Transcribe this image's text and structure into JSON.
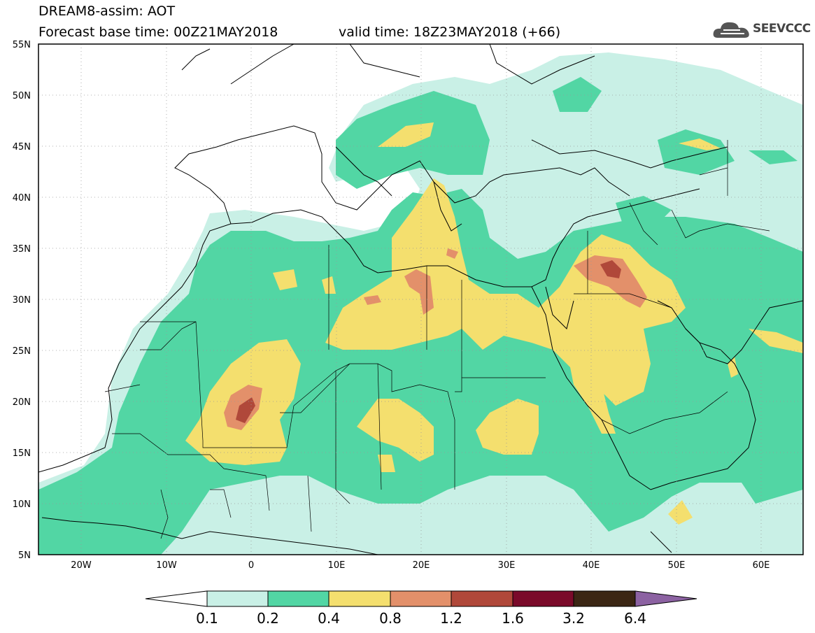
{
  "header": {
    "line1": "DREAM8-assim: AOT",
    "line2": "Forecast base time: 00Z21MAY2018",
    "valid": "valid time: 18Z23MAY2018 (+66)"
  },
  "logo": {
    "text": "SEEVCCC",
    "icon": "cloud-icon"
  },
  "axes": {
    "lat_labels": [
      "55N",
      "50N",
      "45N",
      "40N",
      "35N",
      "30N",
      "25N",
      "20N",
      "15N",
      "10N",
      "5N"
    ],
    "lon_labels": [
      "20W",
      "10W",
      "0",
      "10E",
      "20E",
      "30E",
      "40E",
      "50E",
      "60E"
    ]
  },
  "colorbar": {
    "labels": [
      "0.1",
      "0.2",
      "0.4",
      "0.8",
      "1.2",
      "1.6",
      "3.2",
      "6.4"
    ],
    "colors": [
      "#ffffff",
      "#c9f0e6",
      "#52d6a4",
      "#f4df6e",
      "#e3906a",
      "#b0483a",
      "#7a0a2a",
      "#3b2614",
      "#8c62a2"
    ]
  },
  "field_colors": {
    "low": "#c9f0e6",
    "mid": "#52d6a4",
    "high": "#f4df6e",
    "higher": "#e3906a",
    "peak": "#b0483a"
  }
}
